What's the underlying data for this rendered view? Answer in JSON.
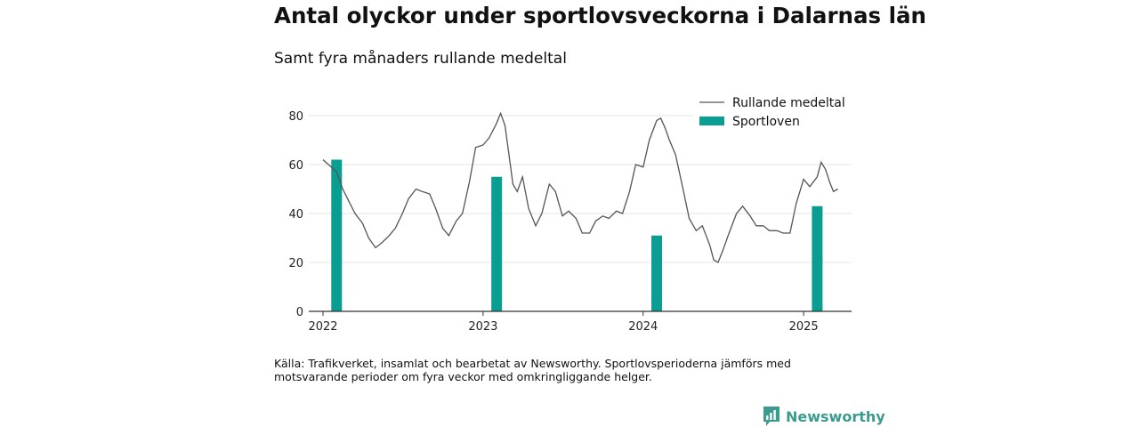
{
  "header": {
    "title": "Antal olyckor under sportlovsveckorna i Dalarnas län",
    "subtitle": "Samt fyra månaders rullande medeltal"
  },
  "footnote": "Källa: Trafikverket, insamlat och bearbetat av Newsworthy. Sportlovsperioderna jämförs med motsvarande perioder om fyra veckor med omkringliggande helger.",
  "brand": {
    "name": "Newsworthy",
    "color": "#3b9b8f"
  },
  "chart_data": {
    "type": "bar+line",
    "title": "Antal olyckor under sportlovsveckorna i Dalarnas län",
    "subtitle": "Samt fyra månaders rullande medeltal",
    "xlabel": "",
    "ylabel": "",
    "ylim": [
      0,
      80
    ],
    "yticks": [
      0,
      20,
      40,
      60,
      80
    ],
    "xticks": [
      "2022",
      "2023",
      "2024",
      "2025"
    ],
    "grid": true,
    "legend_position": "top-right",
    "colors": {
      "line": "#555555",
      "bars": "#0a9e92"
    },
    "series": [
      {
        "name": "Rullande medeltal",
        "type": "line",
        "points": [
          [
            "2022-01-01",
            62
          ],
          [
            "2022-02-01",
            57
          ],
          [
            "2022-02-15",
            50
          ],
          [
            "2022-03-01",
            45
          ],
          [
            "2022-03-15",
            40
          ],
          [
            "2022-04-01",
            36
          ],
          [
            "2022-04-15",
            30
          ],
          [
            "2022-05-01",
            26
          ],
          [
            "2022-05-15",
            28
          ],
          [
            "2022-06-01",
            31
          ],
          [
            "2022-06-15",
            34
          ],
          [
            "2022-07-01",
            40
          ],
          [
            "2022-07-15",
            46
          ],
          [
            "2022-08-01",
            50
          ],
          [
            "2022-08-15",
            49
          ],
          [
            "2022-09-01",
            48
          ],
          [
            "2022-09-15",
            42
          ],
          [
            "2022-10-01",
            34
          ],
          [
            "2022-10-15",
            31
          ],
          [
            "2022-11-01",
            37
          ],
          [
            "2022-11-15",
            40
          ],
          [
            "2022-12-01",
            53
          ],
          [
            "2022-12-15",
            67
          ],
          [
            "2023-01-01",
            68
          ],
          [
            "2023-01-15",
            71
          ],
          [
            "2023-02-01",
            77
          ],
          [
            "2023-02-10",
            81
          ],
          [
            "2023-02-20",
            76
          ],
          [
            "2023-03-01",
            64
          ],
          [
            "2023-03-10",
            52
          ],
          [
            "2023-03-20",
            49
          ],
          [
            "2023-04-01",
            55
          ],
          [
            "2023-04-15",
            42
          ],
          [
            "2023-05-01",
            35
          ],
          [
            "2023-05-15",
            40
          ],
          [
            "2023-06-01",
            52
          ],
          [
            "2023-06-15",
            49
          ],
          [
            "2023-07-01",
            39
          ],
          [
            "2023-07-15",
            41
          ],
          [
            "2023-08-01",
            38
          ],
          [
            "2023-08-15",
            32
          ],
          [
            "2023-09-01",
            32
          ],
          [
            "2023-09-15",
            37
          ],
          [
            "2023-10-01",
            39
          ],
          [
            "2023-10-15",
            38
          ],
          [
            "2023-11-01",
            41
          ],
          [
            "2023-11-15",
            40
          ],
          [
            "2023-12-01",
            49
          ],
          [
            "2023-12-15",
            60
          ],
          [
            "2024-01-01",
            59
          ],
          [
            "2024-01-15",
            70
          ],
          [
            "2024-02-01",
            78
          ],
          [
            "2024-02-10",
            79
          ],
          [
            "2024-02-20",
            75
          ],
          [
            "2024-03-01",
            70
          ],
          [
            "2024-03-15",
            64
          ],
          [
            "2024-04-01",
            50
          ],
          [
            "2024-04-15",
            38
          ],
          [
            "2024-05-01",
            33
          ],
          [
            "2024-05-15",
            35
          ],
          [
            "2024-06-01",
            27
          ],
          [
            "2024-06-10",
            21
          ],
          [
            "2024-06-20",
            20
          ],
          [
            "2024-07-01",
            25
          ],
          [
            "2024-07-15",
            32
          ],
          [
            "2024-08-01",
            40
          ],
          [
            "2024-08-15",
            43
          ],
          [
            "2024-09-01",
            39
          ],
          [
            "2024-09-15",
            35
          ],
          [
            "2024-10-01",
            35
          ],
          [
            "2024-10-15",
            33
          ],
          [
            "2024-11-01",
            33
          ],
          [
            "2024-11-15",
            32
          ],
          [
            "2024-12-01",
            32
          ],
          [
            "2024-12-15",
            44
          ],
          [
            "2025-01-01",
            54
          ],
          [
            "2025-01-15",
            51
          ],
          [
            "2025-02-01",
            55
          ],
          [
            "2025-02-10",
            61
          ],
          [
            "2025-02-20",
            58
          ],
          [
            "2025-03-01",
            53
          ],
          [
            "2025-03-10",
            49
          ],
          [
            "2025-03-20",
            50
          ]
        ]
      },
      {
        "name": "Sportloven",
        "type": "bar",
        "points": [
          [
            "2022-02-01",
            62
          ],
          [
            "2023-02-01",
            55
          ],
          [
            "2024-02-01",
            31
          ],
          [
            "2025-02-01",
            43
          ]
        ]
      }
    ]
  }
}
